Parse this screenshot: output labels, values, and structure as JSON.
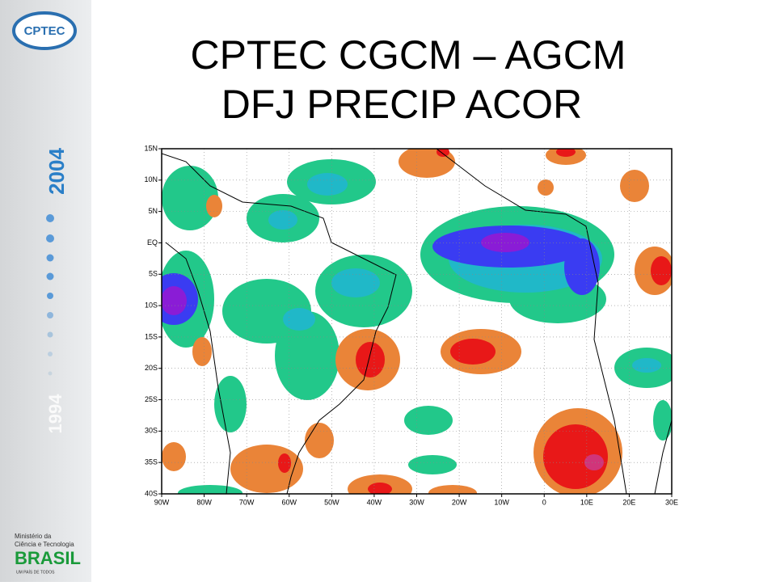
{
  "sidebar": {
    "logo": "CPTEC",
    "year_end": "2004",
    "year_start": "1994",
    "ministry_line1": "Ministério da",
    "ministry_line2": "Ciência e Tecnologia",
    "brand": "BRASIL",
    "brand_motto": "UM PAÍS DE TODOS"
  },
  "title": {
    "line1": "CPTEC CGCM – AGCM",
    "line2": "DFJ PRECIP ACOR"
  },
  "map": {
    "lat_labels": [
      "15N",
      "10N",
      "5N",
      "EQ",
      "5S",
      "10S",
      "15S",
      "20S",
      "25S",
      "30S",
      "35S",
      "40S"
    ],
    "lon_labels": [
      "90W",
      "80W",
      "70W",
      "60W",
      "50W",
      "40W",
      "30W",
      "20W",
      "10W",
      "0",
      "10E",
      "20E",
      "30E"
    ]
  }
}
